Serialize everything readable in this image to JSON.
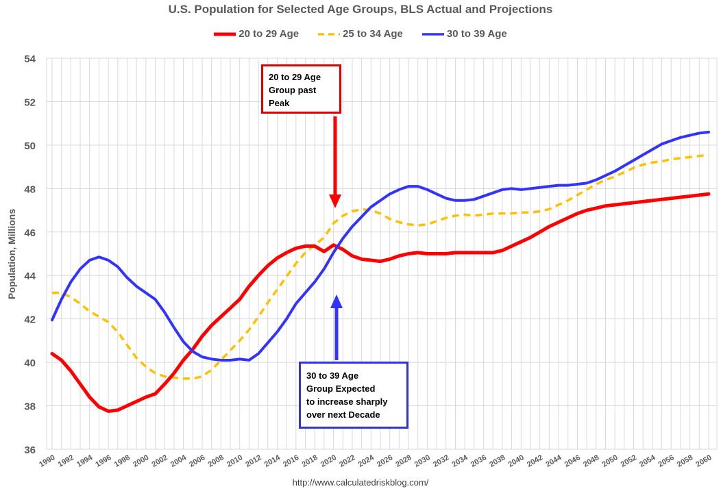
{
  "chart_data": {
    "type": "line",
    "title": "U.S. Population for Selected Age Groups, BLS Actual and Projections",
    "ylabel": "Population, Millions",
    "xlabel": "",
    "ylim": [
      36,
      54
    ],
    "yticks": [
      36,
      38,
      40,
      42,
      44,
      46,
      48,
      50,
      52,
      54
    ],
    "xlim": [
      1990,
      2060
    ],
    "xtick_labels": [
      "1990",
      "1992",
      "1994",
      "1996",
      "1998",
      "2000",
      "2002",
      "2004",
      "2006",
      "2008",
      "2010",
      "2012",
      "2014",
      "2016",
      "2018",
      "2020",
      "2022",
      "2024",
      "2026",
      "2028",
      "2030",
      "2032",
      "2034",
      "2036",
      "2038",
      "2040",
      "2042",
      "2044",
      "2046",
      "2048",
      "2050",
      "2052",
      "2054",
      "2056",
      "2058",
      "2060"
    ],
    "grid": true,
    "legend_position": "top",
    "x": [
      1990,
      1991,
      1992,
      1993,
      1994,
      1995,
      1996,
      1997,
      1998,
      1999,
      2000,
      2001,
      2002,
      2003,
      2004,
      2005,
      2006,
      2007,
      2008,
      2009,
      2010,
      2011,
      2012,
      2013,
      2014,
      2015,
      2016,
      2017,
      2018,
      2019,
      2020,
      2021,
      2022,
      2023,
      2024,
      2025,
      2026,
      2027,
      2028,
      2029,
      2030,
      2031,
      2032,
      2033,
      2034,
      2035,
      2036,
      2037,
      2038,
      2039,
      2040,
      2041,
      2042,
      2043,
      2044,
      2045,
      2046,
      2047,
      2048,
      2049,
      2050,
      2051,
      2052,
      2053,
      2054,
      2055,
      2056,
      2057,
      2058,
      2059,
      2060
    ],
    "series": [
      {
        "name": "20 to 29 Age",
        "color": "#ff0000",
        "dash": false,
        "values": [
          40.4,
          40.1,
          39.6,
          39.0,
          38.4,
          37.95,
          37.75,
          37.8,
          38.0,
          38.2,
          38.4,
          38.55,
          39.0,
          39.5,
          40.1,
          40.6,
          41.2,
          41.7,
          42.1,
          42.5,
          42.9,
          43.5,
          44.0,
          44.45,
          44.8,
          45.05,
          45.25,
          45.35,
          45.35,
          45.1,
          45.4,
          45.2,
          44.9,
          44.75,
          44.7,
          44.65,
          44.75,
          44.9,
          45.0,
          45.05,
          45.0,
          45.0,
          45.0,
          45.05,
          45.05,
          45.05,
          45.05,
          45.05,
          45.15,
          45.35,
          45.55,
          45.75,
          46.0,
          46.25,
          46.45,
          46.65,
          46.85,
          47.0,
          47.1,
          47.2,
          47.25,
          47.3,
          47.35,
          47.4,
          47.45,
          47.5,
          47.55,
          47.6,
          47.65,
          47.7,
          47.75
        ]
      },
      {
        "name": "25 to 34 Age",
        "color": "#ffc000",
        "dash": true,
        "values": [
          43.2,
          43.2,
          43.0,
          42.7,
          42.35,
          42.1,
          41.85,
          41.4,
          40.8,
          40.2,
          39.8,
          39.5,
          39.35,
          39.3,
          39.25,
          39.25,
          39.35,
          39.65,
          40.1,
          40.55,
          41.0,
          41.5,
          42.1,
          42.75,
          43.35,
          43.95,
          44.55,
          45.05,
          45.4,
          45.75,
          46.4,
          46.75,
          46.95,
          47.05,
          47.0,
          46.85,
          46.6,
          46.45,
          46.35,
          46.3,
          46.35,
          46.5,
          46.65,
          46.75,
          46.8,
          46.75,
          46.8,
          46.85,
          46.85,
          46.85,
          46.9,
          46.9,
          46.95,
          47.05,
          47.25,
          47.45,
          47.7,
          47.95,
          48.2,
          48.4,
          48.55,
          48.75,
          48.95,
          49.1,
          49.2,
          49.25,
          49.35,
          49.4,
          49.45,
          49.5,
          49.55
        ]
      },
      {
        "name": "30 to 39 Age",
        "color": "#3333ff",
        "dash": false,
        "values": [
          41.95,
          42.9,
          43.7,
          44.3,
          44.7,
          44.85,
          44.7,
          44.4,
          43.9,
          43.5,
          43.2,
          42.9,
          42.3,
          41.6,
          40.95,
          40.5,
          40.25,
          40.15,
          40.1,
          40.1,
          40.15,
          40.1,
          40.4,
          40.9,
          41.4,
          42.0,
          42.7,
          43.2,
          43.7,
          44.3,
          45.05,
          45.7,
          46.25,
          46.7,
          47.15,
          47.45,
          47.75,
          47.95,
          48.1,
          48.1,
          47.95,
          47.75,
          47.55,
          47.45,
          47.45,
          47.5,
          47.65,
          47.8,
          47.95,
          48.0,
          47.95,
          48.0,
          48.05,
          48.1,
          48.15,
          48.15,
          48.2,
          48.25,
          48.4,
          48.6,
          48.8,
          49.05,
          49.3,
          49.55,
          49.8,
          50.05,
          50.2,
          50.35,
          50.45,
          50.55,
          50.6
        ]
      }
    ],
    "annotations": [
      {
        "text_lines": [
          "20 to 29 Age",
          "Group past",
          "Peak"
        ],
        "border_color": "#e00000",
        "arrow_color": "#ff0000",
        "arrow_direction": "down"
      },
      {
        "text_lines": [
          "30 to 39 Age",
          "Group Expected",
          "to increase sharply",
          "over next Decade"
        ],
        "border_color": "#3333dd",
        "arrow_color": "#3333ff",
        "arrow_direction": "up"
      }
    ]
  },
  "source_text": "http://www.calculatedriskblog.com/"
}
